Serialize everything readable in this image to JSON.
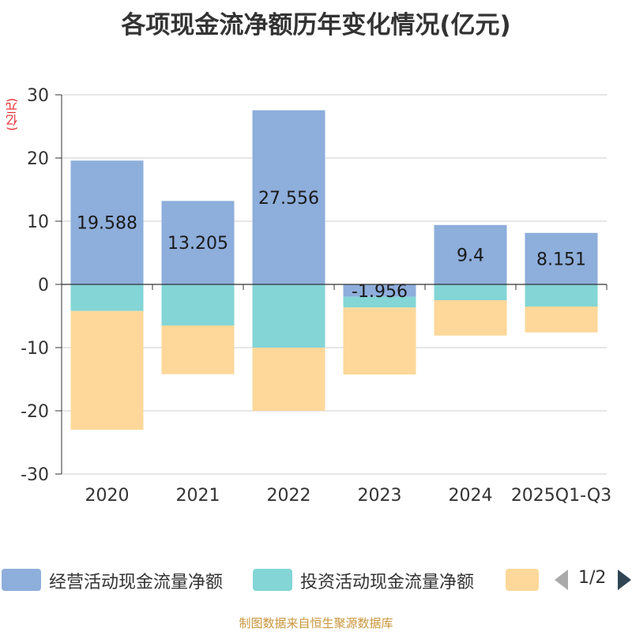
{
  "title": "各项现金流净额历年变化情况(亿元)",
  "unit_label": "(亿元)",
  "footer": "制图数据来自恒生聚源数据库",
  "pager": "1/2",
  "legend": [
    {
      "name": "经营活动现金流量净额",
      "color": "#8eaedb"
    },
    {
      "name": "投资活动现金流量净额",
      "color": "#83d5d6"
    },
    {
      "name": "",
      "color": "#fdd89a"
    }
  ],
  "icons": {
    "prev": "triangle-left-icon",
    "next": "triangle-right-icon"
  },
  "chart_data": {
    "type": "bar",
    "stacked": true,
    "categories": [
      "2020",
      "2021",
      "2022",
      "2023",
      "2024",
      "2025Q1-Q3"
    ],
    "series": [
      {
        "name": "经营活动现金流量净额",
        "color": "#8eaedb",
        "values": [
          19.588,
          13.205,
          27.556,
          -1.956,
          9.4,
          8.151
        ],
        "labels": [
          "19.588",
          "13.205",
          "27.556",
          "-1.956",
          "9.4",
          "8.151"
        ]
      },
      {
        "name": "投资活动现金流量净额",
        "color": "#83d5d6",
        "values": [
          -4.2,
          -6.5,
          -10.0,
          -1.7,
          -2.5,
          -3.5
        ]
      },
      {
        "name": "",
        "color": "#fdd89a",
        "values": [
          -18.8,
          -7.7,
          -10.0,
          -10.6,
          -5.6,
          -4.1
        ]
      }
    ],
    "ylim": [
      -30,
      30
    ],
    "yticks": [
      -30,
      -20,
      -10,
      0,
      10,
      20,
      30
    ],
    "ylabel": "(亿元)",
    "grid": true
  }
}
